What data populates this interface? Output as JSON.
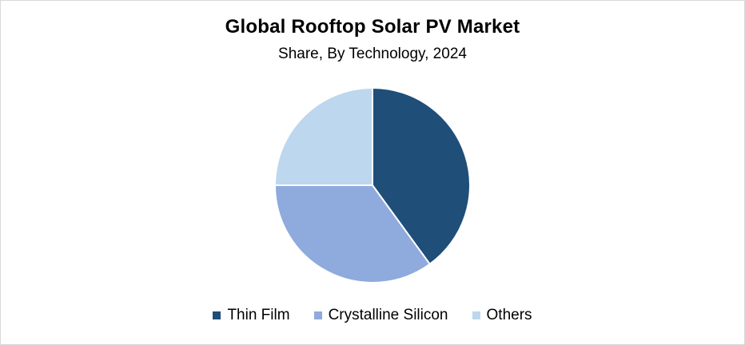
{
  "chart_data": {
    "type": "pie",
    "title": "Global Rooftop Solar PV Market",
    "subtitle": "Share, By Technology, 2024",
    "series": [
      {
        "name": "Thin Film",
        "value": 40,
        "color": "#1f4e79"
      },
      {
        "name": "Crystalline Silicon",
        "value": 35,
        "color": "#8faadc"
      },
      {
        "name": "Others",
        "value": 25,
        "color": "#bdd7ee"
      }
    ],
    "legend_position": "bottom"
  }
}
